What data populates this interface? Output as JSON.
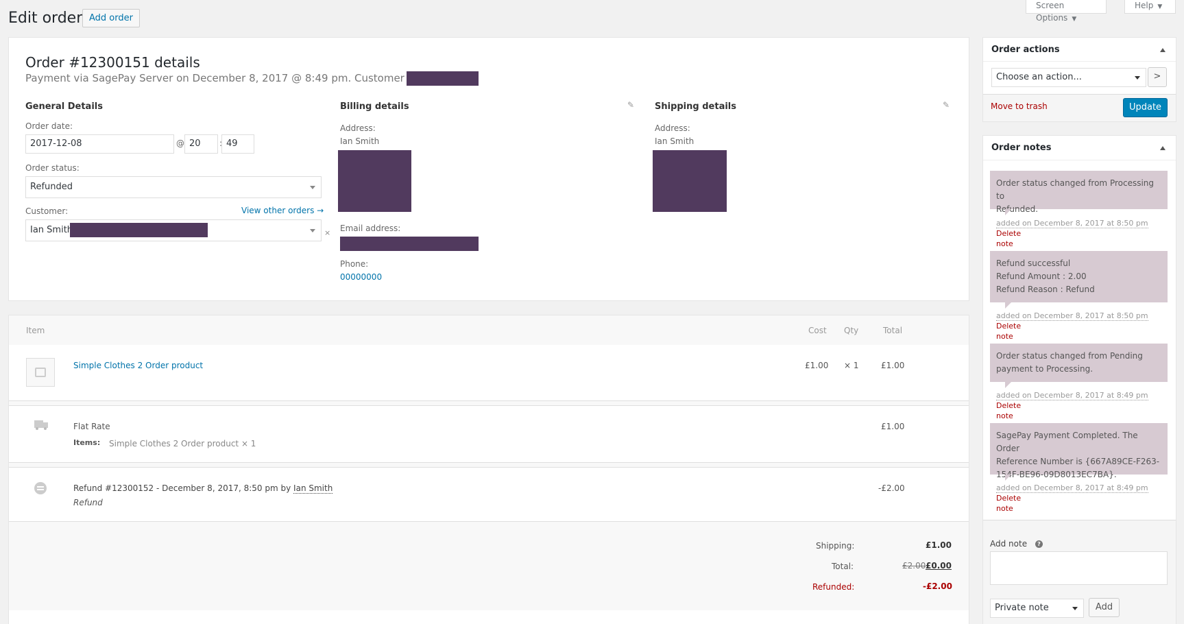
{
  "header": {
    "title": "Edit order",
    "add_order_label": "Add order",
    "screen_options_label": "Screen Options",
    "help_label": "Help"
  },
  "order": {
    "heading": "Order #12300151 details",
    "payment_line": "Payment via SagePay Server on December 8, 2017 @ 8:49 pm. Customer IP:",
    "general": {
      "title": "General Details",
      "date_label": "Order date:",
      "date_value": "2017-12-08",
      "at_symbol": "@",
      "hour": "20",
      "colon": ":",
      "minute": "49",
      "status_label": "Order status:",
      "status_value": "Refunded",
      "customer_label": "Customer:",
      "view_other_orders": "View other orders →",
      "customer_value": "Ian Smith",
      "clear_symbol": "×"
    },
    "billing": {
      "title": "Billing details",
      "address_label": "Address:",
      "address_name": "Ian Smith",
      "email_label": "Email address:",
      "phone_label": "Phone:",
      "phone_value": "00000000"
    },
    "shipping": {
      "title": "Shipping details",
      "address_label": "Address:",
      "address_name": "Ian Smith"
    }
  },
  "items": {
    "headers": {
      "item": "Item",
      "cost": "Cost",
      "qty": "Qty",
      "total": "Total"
    },
    "product": {
      "name": "Simple Clothes 2 Order product",
      "cost": "£1.00",
      "qty": "× 1",
      "total": "£1.00"
    },
    "shipping_line": {
      "name": "Flat Rate",
      "items_label": "Items:",
      "items_value": "Simple Clothes 2 Order product × 1",
      "total": "£1.00"
    },
    "refund_line": {
      "text": "Refund #12300152 - December 8, 2017, 8:50 pm by",
      "author": "Ian Smith",
      "reason": "Refund",
      "amount": "-£2.00"
    },
    "totals": {
      "shipping_label": "Shipping:",
      "shipping_value": "£1.00",
      "total_label": "Total:",
      "total_old": "£2.00",
      "total_new": "£0.00",
      "refunded_label": "Refunded:",
      "refunded_value": "-£2.00"
    }
  },
  "actions": {
    "title": "Order actions",
    "select_value": "Choose an action...",
    "go_symbol": ">",
    "trash_label": "Move to trash",
    "update_label": "Update"
  },
  "notes": {
    "title": "Order notes",
    "delete_label_1": "Delete",
    "delete_label_2": "note",
    "list": [
      {
        "lines": [
          "Order status changed from Processing to",
          "Refunded."
        ],
        "meta": "added on December 8, 2017 at 8:50 pm"
      },
      {
        "lines": [
          "Refund successful",
          "Refund Amount : 2.00",
          "Refund Reason : Refund"
        ],
        "meta": "added on December 8, 2017 at 8:50 pm"
      },
      {
        "lines": [
          "Order status changed from Pending",
          "payment to Processing."
        ],
        "meta": "added on December 8, 2017 at 8:49 pm"
      },
      {
        "lines": [
          "SagePay Payment Completed. The Order",
          "Reference Number is {667A89CE-F263-",
          "154F-BE96-09D8013EC7BA}."
        ],
        "meta": "added on December 8, 2017 at 8:49 pm"
      }
    ],
    "add_note_label": "Add note",
    "help_symbol": "?",
    "note_type_value": "Private note",
    "add_button": "Add"
  },
  "colors": {
    "redaction": "#513a5e",
    "note_bg": "#d7cad2",
    "primary": "#0085ba",
    "link": "#0073aa",
    "danger": "#a00"
  }
}
